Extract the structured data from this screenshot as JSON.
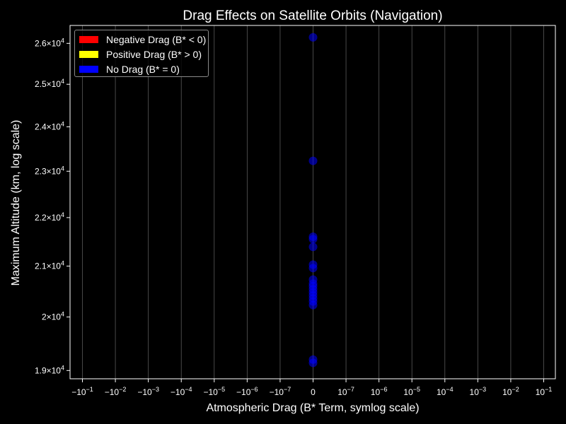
{
  "chart_data": {
    "type": "scatter",
    "title": "Drag Effects on Satellite Orbits (Navigation)",
    "xlabel": "Atmospheric Drag (B* Term, symlog scale)",
    "ylabel": "Maximum Altitude (km, log scale)",
    "xscale": "symlog",
    "yscale": "log",
    "x_ticks": [
      "-1e-1",
      "-1e-2",
      "-1e-3",
      "-1e-4",
      "-1e-5",
      "-1e-6",
      "-1e-7",
      "0",
      "1e-7",
      "1e-6",
      "1e-5",
      "1e-4",
      "1e-3",
      "1e-2",
      "1e-1"
    ],
    "x_tick_labels": [
      {
        "mant": "−10",
        "exp": "−1"
      },
      {
        "mant": "−10",
        "exp": "−2"
      },
      {
        "mant": "−10",
        "exp": "−3"
      },
      {
        "mant": "−10",
        "exp": "−4"
      },
      {
        "mant": "−10",
        "exp": "−5"
      },
      {
        "mant": "−10",
        "exp": "−6"
      },
      {
        "mant": "−10",
        "exp": "−7"
      },
      {
        "mant": "0",
        "exp": ""
      },
      {
        "mant": "10",
        "exp": "−7"
      },
      {
        "mant": "10",
        "exp": "−6"
      },
      {
        "mant": "10",
        "exp": "−5"
      },
      {
        "mant": "10",
        "exp": "−4"
      },
      {
        "mant": "10",
        "exp": "−3"
      },
      {
        "mant": "10",
        "exp": "−2"
      },
      {
        "mant": "10",
        "exp": "−1"
      }
    ],
    "y_ticks": [
      19000,
      20000,
      21000,
      22000,
      23000,
      24000,
      25000,
      26000
    ],
    "y_tick_labels": [
      {
        "mant": "1.9×10",
        "exp": "4"
      },
      {
        "mant": "2×10",
        "exp": "4"
      },
      {
        "mant": "2.1×10",
        "exp": "4"
      },
      {
        "mant": "2.2×10",
        "exp": "4"
      },
      {
        "mant": "2.3×10",
        "exp": "4"
      },
      {
        "mant": "2.4×10",
        "exp": "4"
      },
      {
        "mant": "2.5×10",
        "exp": "4"
      },
      {
        "mant": "2.6×10",
        "exp": "4"
      }
    ],
    "ylim": [
      18850,
      26450
    ],
    "grid": "vertical",
    "legend_position": "top-left",
    "legend": [
      {
        "label": "Negative Drag (B* < 0)",
        "color": "#ff0000"
      },
      {
        "label": "Positive Drag (B* > 0)",
        "color": "#ffff00"
      },
      {
        "label": "No Drag (B* = 0)",
        "color": "#0000ff"
      }
    ],
    "series": [
      {
        "name": "No Drag (B* = 0)",
        "color": "#0000ff",
        "points": [
          {
            "x": 0,
            "y": 26150
          },
          {
            "x": 0,
            "y": 23230
          },
          {
            "x": 0,
            "y": 21600
          },
          {
            "x": 0,
            "y": 21550
          },
          {
            "x": 0,
            "y": 21390
          },
          {
            "x": 0,
            "y": 21030
          },
          {
            "x": 0,
            "y": 20960
          },
          {
            "x": 0,
            "y": 20730
          },
          {
            "x": 0,
            "y": 20650
          },
          {
            "x": 0,
            "y": 20600
          },
          {
            "x": 0,
            "y": 20540
          },
          {
            "x": 0,
            "y": 20480
          },
          {
            "x": 0,
            "y": 20420
          },
          {
            "x": 0,
            "y": 20360
          },
          {
            "x": 0,
            "y": 20300
          },
          {
            "x": 0,
            "y": 20230
          },
          {
            "x": 0,
            "y": 19200
          },
          {
            "x": 0,
            "y": 19140
          }
        ]
      }
    ]
  }
}
